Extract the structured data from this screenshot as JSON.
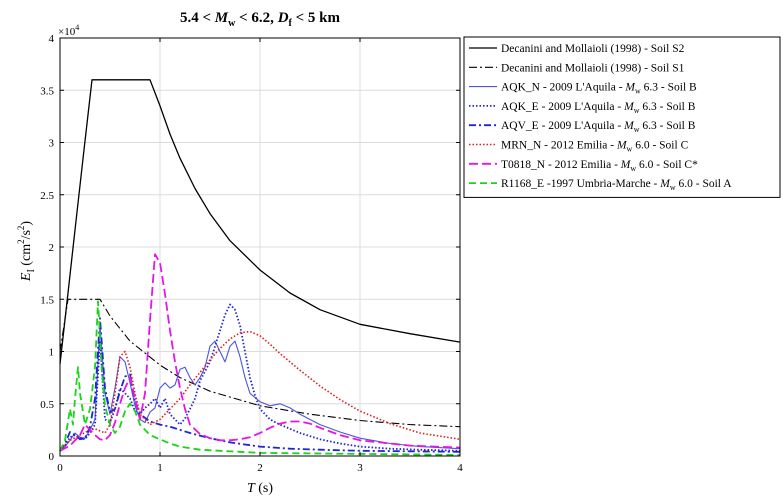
{
  "chart_data": {
    "type": "line",
    "title": {
      "pre": "5.4 < ",
      "v1": "M",
      "s1": "w",
      "mid": " < 6.2, ",
      "v2": "D",
      "s2": "f",
      "post": " < 5 km"
    },
    "xlabel": {
      "var": "T",
      "unit": " (s)"
    },
    "ylabel": {
      "var": "E",
      "sub": "I",
      "unit_pre": " (cm",
      "sup1": "2",
      "unit_mid": "/s",
      "sup2": "2",
      "unit_post": ")"
    },
    "exponent": {
      "base": "×10",
      "power": "4"
    },
    "xlim": [
      0,
      4
    ],
    "ylim": [
      0,
      40000
    ],
    "grid": true,
    "legend_position": "outside-right",
    "x_ticks": [
      {
        "value": 0,
        "label": "0"
      },
      {
        "value": 1,
        "label": "1"
      },
      {
        "value": 2,
        "label": "2"
      },
      {
        "value": 3,
        "label": "3"
      },
      {
        "value": 4,
        "label": "4"
      }
    ],
    "y_ticks": [
      {
        "value": 0,
        "label": "0"
      },
      {
        "value": 5000,
        "label": "0.5"
      },
      {
        "value": 10000,
        "label": "1"
      },
      {
        "value": 15000,
        "label": "1.5"
      },
      {
        "value": 20000,
        "label": "2"
      },
      {
        "value": 25000,
        "label": "2.5"
      },
      {
        "value": 30000,
        "label": "3"
      },
      {
        "value": 35000,
        "label": "3.5"
      },
      {
        "value": 40000,
        "label": "4"
      }
    ],
    "series": [
      {
        "name": "Decanini and Mollaioli (1998) - Soil S2",
        "legend": [
          "Decanini and Mollaioli (1998) - Soil S2"
        ],
        "color": "#000000",
        "dash": "",
        "width": 1.3,
        "x": [
          0,
          0.08,
          0.16,
          0.24,
          0.32,
          0.36,
          0.5,
          0.7,
          0.9,
          1.0,
          1.1,
          1.2,
          1.35,
          1.5,
          1.7,
          2.0,
          2.3,
          2.6,
          3.0,
          3.5,
          4.0
        ],
        "y": [
          8800,
          15600,
          22500,
          29300,
          36000,
          36000,
          36000,
          36000,
          36000,
          33500,
          30800,
          28500,
          25600,
          23200,
          20600,
          17800,
          15600,
          14000,
          12600,
          11700,
          10900
        ]
      },
      {
        "name": "Decanini and Mollaioli (1998) - Soil S1",
        "legend": [
          "Decanini and Mollaioli (1998) - Soil S1"
        ],
        "color": "#000000",
        "dash": "8,3,2,3",
        "width": 1.1,
        "x": [
          0,
          0.08,
          0.16,
          0.2,
          0.3,
          0.4,
          0.5,
          0.7,
          1.0,
          1.2,
          1.5,
          2.0,
          2.5,
          3.0,
          3.5,
          4.0
        ],
        "y": [
          10000,
          15000,
          15000,
          15000,
          15000,
          15000,
          13400,
          11000,
          8700,
          7500,
          6200,
          4800,
          4000,
          3400,
          3000,
          2800
        ]
      },
      {
        "name": "AQK_N - 2009 L'Aquila - Mw 6.3 - Soil B",
        "legend": [
          "AQK_N - 2009 L'Aquila - ",
          "M",
          "w",
          " 6.3 - Soil B"
        ],
        "color": "#4a56dc",
        "dash": "",
        "width": 1.1,
        "x": [
          0,
          0.05,
          0.1,
          0.15,
          0.2,
          0.25,
          0.3,
          0.35,
          0.4,
          0.45,
          0.5,
          0.55,
          0.6,
          0.65,
          0.7,
          0.75,
          0.8,
          0.85,
          0.9,
          0.95,
          1.0,
          1.05,
          1.1,
          1.15,
          1.2,
          1.25,
          1.3,
          1.35,
          1.4,
          1.45,
          1.5,
          1.55,
          1.6,
          1.65,
          1.7,
          1.75,
          1.8,
          1.85,
          1.9,
          2.0,
          2.1,
          2.2,
          2.3,
          2.4,
          2.6,
          2.8,
          3.0,
          3.3,
          3.6,
          4.0
        ],
        "y": [
          400,
          900,
          1500,
          2200,
          1800,
          1700,
          2500,
          3500,
          12500,
          6000,
          4000,
          6500,
          9500,
          9000,
          7000,
          4800,
          3500,
          3200,
          4200,
          4600,
          6500,
          7000,
          6500,
          6800,
          8300,
          8500,
          7500,
          6800,
          7500,
          8500,
          10500,
          11000,
          10000,
          9000,
          10500,
          11000,
          9500,
          7500,
          6000,
          5200,
          4800,
          5000,
          4600,
          4000,
          3000,
          2300,
          1700,
          1200,
          900,
          700
        ]
      },
      {
        "name": "AQK_E - 2009 L'Aquila - Mw 6.3 - Soil B",
        "legend": [
          "AQK_E - 2009 L'Aquila - ",
          "M",
          "w",
          " 6.3 - Soil B"
        ],
        "color": "#1f24d6",
        "dash": "1.5,2",
        "width": 1.8,
        "x": [
          0,
          0.05,
          0.1,
          0.15,
          0.2,
          0.25,
          0.3,
          0.35,
          0.4,
          0.45,
          0.5,
          0.55,
          0.6,
          0.65,
          0.7,
          0.75,
          0.8,
          0.85,
          0.9,
          0.95,
          1.0,
          1.05,
          1.1,
          1.15,
          1.2,
          1.25,
          1.3,
          1.35,
          1.4,
          1.5,
          1.55,
          1.6,
          1.65,
          1.7,
          1.75,
          1.8,
          1.85,
          1.9,
          1.95,
          2.0,
          2.1,
          2.2,
          2.3,
          2.4,
          2.6,
          2.8,
          3.0,
          3.3,
          3.6,
          4.0
        ],
        "y": [
          500,
          1000,
          1800,
          2000,
          1700,
          1600,
          2200,
          3000,
          11000,
          3500,
          3200,
          4500,
          6500,
          6000,
          5500,
          4300,
          4000,
          4600,
          5000,
          5500,
          4600,
          5500,
          4000,
          3500,
          3000,
          3600,
          4500,
          5500,
          7200,
          9000,
          10500,
          12000,
          13500,
          14500,
          14000,
          12500,
          10000,
          7500,
          5800,
          4500,
          3500,
          3000,
          2600,
          2200,
          1600,
          1200,
          900,
          700,
          600,
          500
        ]
      },
      {
        "name": "AQV_E - 2009 L'Aquila - Mw 6.3 - Soil B",
        "legend": [
          "AQV_E - 2009 L'Aquila - ",
          "M",
          "w",
          " 6.3 - Soil B"
        ],
        "color": "#1f24d6",
        "dash": "7,3,2,3",
        "width": 1.8,
        "x": [
          0,
          0.05,
          0.1,
          0.15,
          0.2,
          0.25,
          0.3,
          0.35,
          0.4,
          0.45,
          0.5,
          0.55,
          0.6,
          0.65,
          0.7,
          0.75,
          0.8,
          0.9,
          1.0,
          1.1,
          1.2,
          1.3,
          1.5,
          1.7,
          2.0,
          2.3,
          2.6,
          3.0,
          3.5,
          4.0
        ],
        "y": [
          500,
          1200,
          2300,
          2000,
          1600,
          1700,
          2800,
          5500,
          13200,
          6500,
          4200,
          4500,
          6200,
          7600,
          7800,
          5200,
          4000,
          3300,
          3000,
          2800,
          2500,
          2200,
          1700,
          1300,
          900,
          700,
          600,
          500,
          450,
          400
        ]
      },
      {
        "name": "MRN_N - 2012 Emilia - Mw 6.0 - Soil C",
        "legend": [
          "MRN_N - 2012 Emilia - ",
          "M",
          "w",
          " 6.0 - Soil C"
        ],
        "color": "#e01c1c",
        "dash": "1.5,2",
        "width": 1.6,
        "x": [
          0,
          0.1,
          0.2,
          0.3,
          0.35,
          0.4,
          0.45,
          0.5,
          0.55,
          0.6,
          0.65,
          0.7,
          0.75,
          0.8,
          0.9,
          1.0,
          1.1,
          1.2,
          1.3,
          1.4,
          1.5,
          1.6,
          1.7,
          1.8,
          1.9,
          2.0,
          2.1,
          2.2,
          2.4,
          2.6,
          2.8,
          3.0,
          3.3,
          3.6,
          4.0
        ],
        "y": [
          600,
          1500,
          2000,
          2500,
          2600,
          2400,
          2200,
          3000,
          6000,
          9500,
          10000,
          8500,
          6000,
          4000,
          3000,
          3500,
          4500,
          5500,
          6800,
          8000,
          9200,
          10300,
          11200,
          11800,
          11900,
          11500,
          10700,
          9800,
          8200,
          6700,
          5400,
          4300,
          3100,
          2200,
          1600
        ]
      },
      {
        "name": "T0818_N - 2012 Emilia - Mw 6.0 - Soil C*",
        "legend": [
          "T0818_N - 2012 Emilia - ",
          "M",
          "w",
          " 6.0 - Soil C*"
        ],
        "color": "#e614e6",
        "dash": "9,4",
        "width": 1.8,
        "x": [
          0,
          0.1,
          0.2,
          0.25,
          0.3,
          0.35,
          0.4,
          0.45,
          0.5,
          0.55,
          0.6,
          0.65,
          0.7,
          0.75,
          0.8,
          0.85,
          0.9,
          0.95,
          1.0,
          1.05,
          1.1,
          1.15,
          1.2,
          1.25,
          1.3,
          1.4,
          1.5,
          1.6,
          1.7,
          1.8,
          1.9,
          2.0,
          2.1,
          2.2,
          2.3,
          2.4,
          2.5,
          2.6,
          2.8,
          3.0,
          3.5,
          4.0
        ],
        "y": [
          500,
          1000,
          2000,
          3000,
          2500,
          2000,
          1600,
          1500,
          2000,
          3200,
          5000,
          6500,
          7500,
          5500,
          3500,
          6000,
          13000,
          19300,
          18500,
          15500,
          12000,
          9000,
          6500,
          4500,
          3000,
          2100,
          1700,
          1500,
          1500,
          1600,
          1800,
          2200,
          2700,
          3100,
          3300,
          3300,
          3100,
          2700,
          2000,
          1500,
          1000,
          800
        ]
      },
      {
        "name": "R1168_E -1997 Umbria-Marche - Mw 6.0 - Soil A",
        "legend": [
          "R1168_E -1997 Umbria-Marche - ",
          "M",
          "w",
          " 6.0 - Soil A"
        ],
        "color": "#19d419",
        "dash": "7,4",
        "width": 1.8,
        "x": [
          0,
          0.05,
          0.1,
          0.13,
          0.15,
          0.18,
          0.2,
          0.25,
          0.3,
          0.35,
          0.38,
          0.42,
          0.45,
          0.5,
          0.55,
          0.6,
          0.65,
          0.7,
          0.75,
          0.8,
          0.9,
          1.0,
          1.1,
          1.2,
          1.4,
          1.6,
          1.8,
          2.0,
          2.5,
          3.0,
          3.5,
          4.0
        ],
        "y": [
          500,
          1500,
          4500,
          3000,
          5500,
          8500,
          6000,
          3000,
          4500,
          8500,
          14800,
          8000,
          4800,
          3000,
          2200,
          2800,
          4300,
          5000,
          4300,
          3000,
          2000,
          1600,
          1200,
          900,
          600,
          500,
          400,
          300,
          250,
          200,
          150,
          100
        ]
      }
    ]
  }
}
